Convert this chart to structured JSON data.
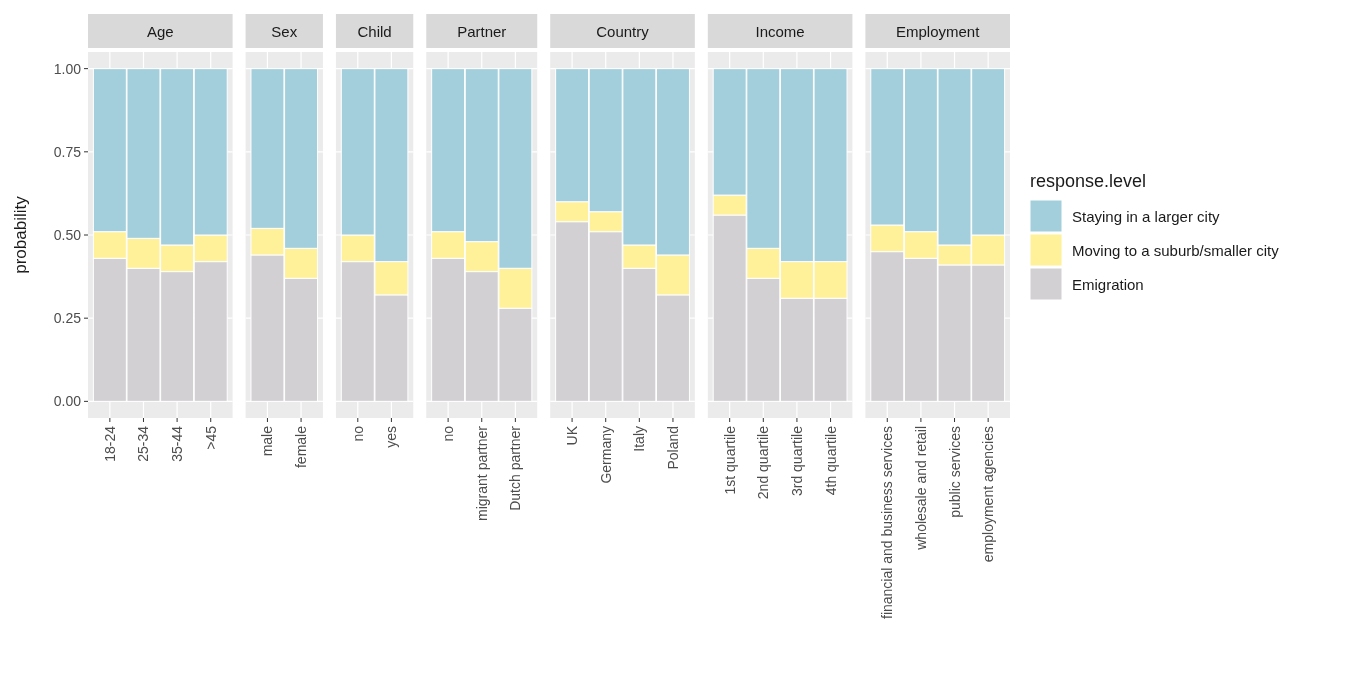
{
  "chart_data": [
    {
      "type": "bar",
      "stacked": true,
      "title": "Age",
      "ylabel": "probability",
      "categories": [
        "18-24",
        "25-34",
        "35-44",
        ">45"
      ],
      "series": [
        {
          "color": "#d3d0d3",
          "values": [
            0.43,
            0.4,
            0.39,
            0.42
          ]
        },
        {
          "color": "#fff09a",
          "values": [
            0.08,
            0.09,
            0.08,
            0.08
          ]
        },
        {
          "color": "#a3cfdc",
          "values": [
            0.49,
            0.51,
            0.53,
            0.5
          ]
        }
      ],
      "ylim": [
        -0.05,
        1.05
      ],
      "yticks": [
        {
          "value": 0,
          "label": "0.00"
        },
        {
          "value": 0.25,
          "label": "0.25"
        },
        {
          "value": 0.5,
          "label": "0.50"
        },
        {
          "value": 0.75,
          "label": "0.75"
        },
        {
          "value": 1,
          "label": "1.00"
        }
      ],
      "grid": true
    },
    {
      "type": "bar",
      "stacked": true,
      "title": "Sex",
      "categories": [
        "male",
        "female"
      ],
      "series": [
        {
          "color": "#d3d0d3",
          "values": [
            0.44,
            0.37
          ]
        },
        {
          "color": "#fff09a",
          "values": [
            0.08,
            0.09
          ]
        },
        {
          "color": "#a3cfdc",
          "values": [
            0.48,
            0.54
          ]
        }
      ],
      "ylim": [
        -0.05,
        1.05
      ],
      "yticks": [
        0,
        0.25,
        0.5,
        0.75,
        1
      ],
      "grid": true,
      "tick_labels": "x"
    },
    {
      "type": "bar",
      "stacked": true,
      "title": "Child",
      "categories": [
        "no",
        "yes"
      ],
      "series": [
        {
          "color": "#d3d0d3",
          "values": [
            0.42,
            0.32
          ]
        },
        {
          "color": "#fff09a",
          "values": [
            0.08,
            0.1
          ]
        },
        {
          "color": "#a3cfdc",
          "values": [
            0.5,
            0.58
          ]
        }
      ],
      "ylim": [
        -0.05,
        1.05
      ],
      "yticks": [
        0,
        0.25,
        0.5,
        0.75,
        1
      ],
      "grid": true,
      "tick_labels": "x"
    },
    {
      "type": "bar",
      "stacked": true,
      "title": "Partner",
      "categories": [
        "no",
        "migrant partner",
        "Dutch partner"
      ],
      "series": [
        {
          "color": "#d3d0d3",
          "values": [
            0.43,
            0.39,
            0.28
          ]
        },
        {
          "color": "#fff09a",
          "values": [
            0.08,
            0.09,
            0.12
          ]
        },
        {
          "color": "#a3cfdc",
          "values": [
            0.49,
            0.52,
            0.6
          ]
        }
      ],
      "ylim": [
        -0.05,
        1.05
      ],
      "yticks": [
        0,
        0.25,
        0.5,
        0.75,
        1
      ],
      "grid": true,
      "tick_labels": "x"
    },
    {
      "type": "bar",
      "stacked": true,
      "title": "Country",
      "categories": [
        "UK",
        "Germany",
        "Italy",
        "Poland"
      ],
      "series": [
        {
          "color": "#d3d0d3",
          "values": [
            0.54,
            0.51,
            0.4,
            0.32
          ]
        },
        {
          "color": "#fff09a",
          "values": [
            0.06,
            0.06,
            0.07,
            0.12
          ]
        },
        {
          "color": "#a3cfdc",
          "values": [
            0.4,
            0.43,
            0.53,
            0.56
          ]
        }
      ],
      "ylim": [
        -0.05,
        1.05
      ],
      "yticks": [
        0,
        0.25,
        0.5,
        0.75,
        1
      ],
      "grid": true,
      "tick_labels": "x"
    },
    {
      "type": "bar",
      "stacked": true,
      "title": "Income",
      "categories": [
        "1st quartile",
        "2nd quartile",
        "3rd quartile",
        "4th quartile"
      ],
      "series": [
        {
          "color": "#d3d0d3",
          "values": [
            0.56,
            0.37,
            0.31,
            0.31
          ]
        },
        {
          "color": "#fff09a",
          "values": [
            0.06,
            0.09,
            0.11,
            0.11
          ]
        },
        {
          "color": "#a3cfdc",
          "values": [
            0.38,
            0.54,
            0.58,
            0.58
          ]
        }
      ],
      "ylim": [
        -0.05,
        1.05
      ],
      "yticks": [
        0,
        0.25,
        0.5,
        0.75,
        1
      ],
      "grid": true,
      "tick_labels": "x"
    },
    {
      "type": "bar",
      "stacked": true,
      "title": "Employment",
      "categories": [
        "financial and business services",
        "wholesale and retail",
        "public services",
        "employment agencies"
      ],
      "series": [
        {
          "name": "Emigration",
          "color": "#d3d0d3",
          "values": [
            0.45,
            0.43,
            0.41,
            0.41
          ]
        },
        {
          "name": "Moving to a suburb/smaller city",
          "color": "#fff09a",
          "values": [
            0.08,
            0.08,
            0.06,
            0.09
          ]
        },
        {
          "name": "Staying in a larger city",
          "color": "#a3cfdc",
          "values": [
            0.47,
            0.49,
            0.53,
            0.5
          ]
        }
      ],
      "ylim": [
        -0.05,
        1.05
      ],
      "yticks": [
        0,
        0.25,
        0.5,
        0.75,
        1
      ],
      "grid": true,
      "tick_labels": "x",
      "legend": "right",
      "legend_title": "response.level"
    }
  ]
}
